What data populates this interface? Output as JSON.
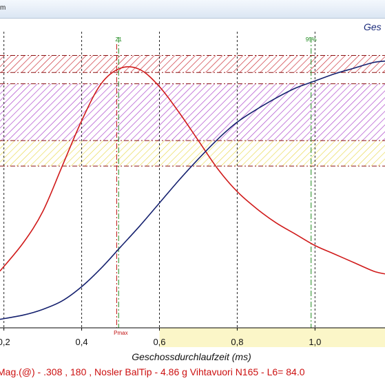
{
  "window": {
    "title_fragment": "m"
  },
  "chart_data": {
    "type": "line",
    "title": "Ges",
    "xlabel": "Geschossdurchlaufzeit (ms)",
    "xticks": [
      "0,2",
      "0,4",
      "0,6",
      "0,8",
      "1,0"
    ],
    "xlim": [
      0.19,
      1.18
    ],
    "ylim": [
      0,
      1
    ],
    "grid": true,
    "markers": [
      {
        "label": "Z1",
        "x": 0.495
      },
      {
        "label": "95%",
        "x": 0.99
      }
    ],
    "pmax_label": "Pmax",
    "pmax_x": 0.49,
    "bands": [
      {
        "from": 0.9,
        "to": 0.96,
        "color": "#c8232c"
      },
      {
        "from": 0.66,
        "to": 0.86,
        "color": "#a83cc8"
      },
      {
        "from": 0.57,
        "to": 0.66,
        "color": "#e8d84a"
      }
    ],
    "band_lines": [
      0.96,
      0.9,
      0.86,
      0.66,
      0.57
    ],
    "series": [
      {
        "color": "#d01a1a",
        "x": [
          0.19,
          0.25,
          0.3,
          0.35,
          0.4,
          0.45,
          0.5,
          0.55,
          0.6,
          0.65,
          0.7,
          0.75,
          0.8,
          0.85,
          0.9,
          0.95,
          1.0,
          1.05,
          1.1,
          1.15,
          1.18
        ],
        "y": [
          0.2,
          0.3,
          0.41,
          0.57,
          0.73,
          0.86,
          0.915,
          0.91,
          0.85,
          0.76,
          0.66,
          0.56,
          0.48,
          0.42,
          0.37,
          0.33,
          0.29,
          0.26,
          0.23,
          0.2,
          0.19
        ]
      },
      {
        "color": "#14206e",
        "x": [
          0.19,
          0.25,
          0.3,
          0.35,
          0.4,
          0.45,
          0.5,
          0.55,
          0.6,
          0.65,
          0.7,
          0.75,
          0.8,
          0.85,
          0.9,
          0.95,
          1.0,
          1.05,
          1.1,
          1.15,
          1.18
        ],
        "y": [
          0.03,
          0.045,
          0.065,
          0.095,
          0.145,
          0.21,
          0.285,
          0.36,
          0.44,
          0.52,
          0.595,
          0.665,
          0.725,
          0.77,
          0.81,
          0.845,
          0.87,
          0.895,
          0.915,
          0.935,
          0.94
        ]
      }
    ],
    "footer": "Mag.(@) - .308 , 180 , Nosler BalTip - 4.86 g Vihtavuori N165 - L6= 84.0"
  }
}
